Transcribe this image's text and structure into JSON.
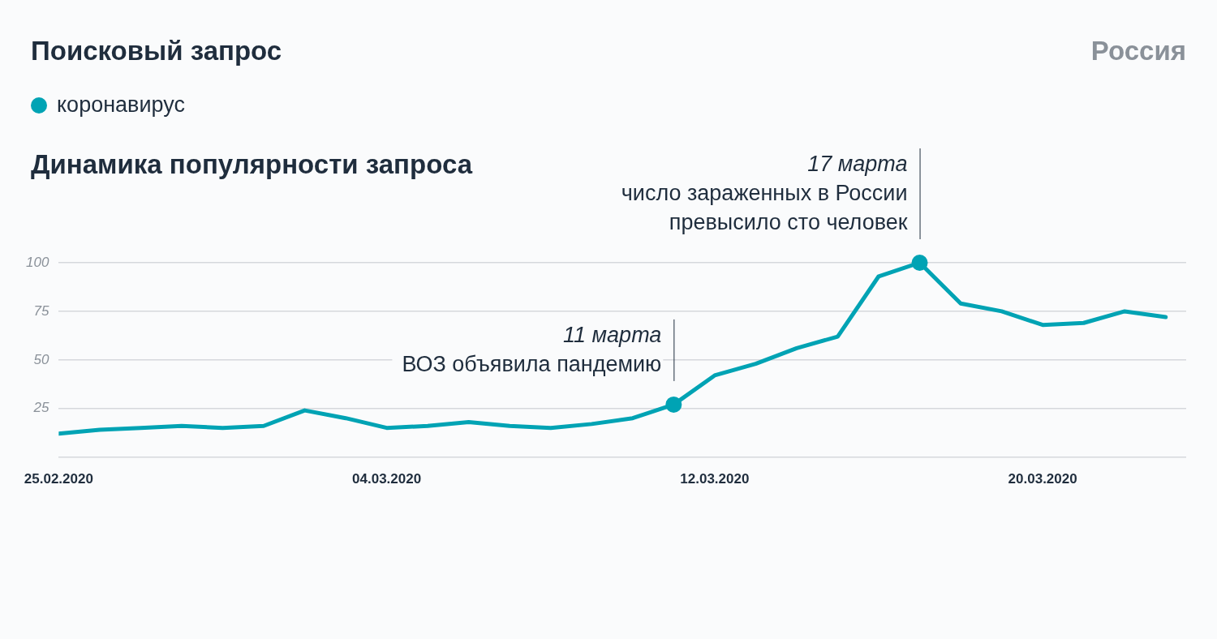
{
  "chart_data": {
    "type": "line",
    "title": "Поисковый запрос",
    "subtitle": "Динамика популярности запроса",
    "annotations": [
      "Россия",
      {
        "text": "17 марта\nчисло зараженных в России\nпревысило сто человек",
        "x": "2020-03-17",
        "y": 100
      },
      {
        "text": "11 марта\nВОЗ объявила пандемию",
        "x": "2020-03-11",
        "y": 27
      }
    ],
    "x": [
      "2020-02-25",
      "2020-02-26",
      "2020-02-27",
      "2020-02-28",
      "2020-02-29",
      "2020-03-01",
      "2020-03-02",
      "2020-03-03",
      "2020-03-04",
      "2020-03-05",
      "2020-03-06",
      "2020-03-07",
      "2020-03-08",
      "2020-03-09",
      "2020-03-10",
      "2020-03-11",
      "2020-03-12",
      "2020-03-13",
      "2020-03-14",
      "2020-03-15",
      "2020-03-16",
      "2020-03-17",
      "2020-03-18",
      "2020-03-19",
      "2020-03-20",
      "2020-03-21",
      "2020-03-22",
      "2020-03-23"
    ],
    "series": [
      {
        "name": "коронавирус",
        "color": "#00a3b4",
        "values": [
          12,
          14,
          15,
          16,
          15,
          16,
          24,
          20,
          15,
          16,
          18,
          16,
          15,
          17,
          20,
          27,
          42,
          48,
          56,
          62,
          93,
          100,
          79,
          75,
          68,
          69,
          75,
          72
        ]
      }
    ],
    "xlim": [
      "2020-02-25",
      "2020-03-23T12:00"
    ],
    "xticks": [
      {
        "value": "2020-02-25",
        "label": "25.02.2020"
      },
      {
        "value": "2020-03-04",
        "label": "04.03.2020"
      },
      {
        "value": "2020-03-12",
        "label": "12.03.2020"
      },
      {
        "value": "2020-03-20",
        "label": "20.03.2020"
      }
    ],
    "ylim": [
      0,
      100
    ],
    "yticks": [
      {
        "value": 0,
        "label": null
      },
      25,
      50,
      75,
      100
    ],
    "grid": "y",
    "legend": "top left",
    "marker": "none",
    "line_style": "solid"
  }
}
